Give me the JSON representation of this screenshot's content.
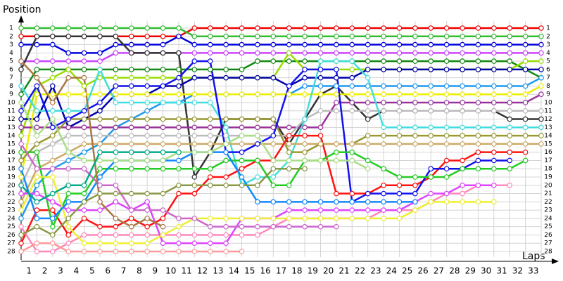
{
  "chart_data": {
    "type": "line",
    "y_label": "Position",
    "x_label": "Laps",
    "x": [
      0,
      1,
      2,
      3,
      4,
      5,
      6,
      7,
      8,
      9,
      10,
      11,
      12,
      13,
      14,
      15,
      16,
      17,
      18,
      19,
      20,
      21,
      22,
      23,
      24,
      25,
      26,
      27,
      28,
      29,
      30,
      31,
      32,
      33
    ],
    "xlim": [
      0,
      33
    ],
    "xticks": [
      1,
      2,
      3,
      4,
      5,
      6,
      7,
      8,
      9,
      10,
      11,
      12,
      13,
      14,
      15,
      16,
      17,
      18,
      19,
      20,
      21,
      22,
      23,
      24,
      25,
      26,
      27,
      28,
      29,
      30,
      31,
      32,
      33
    ],
    "ylim": [
      1,
      28
    ],
    "yticks": [
      1,
      2,
      3,
      4,
      5,
      6,
      7,
      8,
      9,
      10,
      11,
      12,
      13,
      14,
      15,
      16,
      17,
      18,
      19,
      20,
      21,
      22,
      23,
      24,
      25,
      26,
      27,
      28
    ],
    "y_inverted": true,
    "grid": true,
    "series": [
      {
        "color": "#ee0000",
        "values": [
          2,
          2,
          2,
          2,
          2,
          2,
          2,
          2,
          2,
          2,
          2,
          1,
          1,
          1,
          1,
          1,
          1,
          1,
          1,
          1,
          1,
          1,
          1,
          1,
          1,
          1,
          1,
          1,
          1,
          1,
          1,
          1,
          1,
          1
        ]
      },
      {
        "color": "#33bb33",
        "values": [
          1,
          1,
          1,
          1,
          1,
          1,
          1,
          1,
          1,
          1,
          1,
          2,
          2,
          2,
          2,
          2,
          2,
          2,
          2,
          2,
          2,
          2,
          2,
          2,
          2,
          2,
          2,
          2,
          2,
          2,
          2,
          2,
          2,
          2
        ]
      },
      {
        "color": "#0000dd",
        "values": [
          3,
          3,
          3,
          4,
          4,
          4,
          3,
          3,
          3,
          3,
          2,
          3,
          3,
          3,
          3,
          3,
          3,
          3,
          3,
          3,
          3,
          3,
          3,
          3,
          3,
          3,
          3,
          3,
          3,
          3,
          3,
          3,
          3,
          3
        ]
      },
      {
        "color": "#cc44ff",
        "values": [
          5,
          5,
          5,
          5,
          5,
          5,
          4,
          4,
          4,
          4,
          4,
          4,
          4,
          4,
          4,
          4,
          4,
          4,
          4,
          4,
          4,
          4,
          4,
          4,
          4,
          4,
          4,
          4,
          4,
          4,
          4,
          4,
          4,
          4
        ]
      },
      {
        "color": "#333333",
        "values": [
          6,
          2,
          2,
          2,
          2,
          2,
          2,
          4,
          4,
          4,
          4,
          19,
          16,
          12,
          12,
          12,
          12,
          15,
          12,
          9,
          8,
          10,
          12,
          11,
          11,
          11,
          11,
          11,
          11,
          11,
          11,
          12,
          12,
          12
        ]
      },
      {
        "color": "#118811",
        "values": [
          9,
          6,
          6,
          6,
          6,
          6,
          6,
          6,
          6,
          6,
          6,
          6,
          6,
          6,
          6,
          5,
          5,
          5,
          5,
          5,
          5,
          5,
          5,
          5,
          5,
          5,
          5,
          5,
          5,
          5,
          5,
          5,
          6,
          7
        ]
      },
      {
        "color": "#99dd00",
        "values": [
          14,
          8,
          7,
          6,
          8,
          7,
          7,
          7,
          7,
          7,
          7,
          7,
          7,
          7,
          7,
          7,
          7,
          4,
          6,
          6,
          6,
          6,
          6,
          6,
          6,
          6,
          6,
          6,
          6,
          6,
          6,
          6,
          5,
          5
        ]
      },
      {
        "color": "#0000aa",
        "values": [
          12,
          12,
          8,
          13,
          12,
          11,
          9,
          9,
          9,
          8,
          8,
          7,
          7,
          7,
          7,
          7,
          7,
          8,
          7,
          7,
          7,
          7,
          6,
          6,
          6,
          6,
          6,
          6,
          6,
          6,
          6,
          6,
          6,
          6
        ]
      },
      {
        "color": "#2299ee",
        "values": [
          24,
          20,
          18,
          17,
          16,
          15,
          13,
          12,
          11,
          10,
          10,
          9,
          9,
          9,
          9,
          9,
          9,
          9,
          8,
          8,
          8,
          8,
          8,
          8,
          8,
          8,
          8,
          8,
          8,
          8,
          8,
          8,
          8,
          7
        ]
      },
      {
        "color": "#eeee00",
        "values": [
          19,
          9,
          9,
          9,
          9,
          9,
          9,
          9,
          9,
          9,
          9,
          9,
          9,
          9,
          9,
          9,
          9,
          9,
          9,
          9,
          9,
          9,
          9,
          9,
          9,
          9,
          9,
          9,
          9,
          9,
          9,
          9,
          9,
          8
        ]
      },
      {
        "color": "#993399",
        "values": [
          13,
          13,
          13,
          13,
          13,
          13,
          13,
          13,
          13,
          13,
          13,
          13,
          13,
          13,
          13,
          13,
          13,
          13,
          13,
          13,
          10,
          10,
          10,
          10,
          10,
          10,
          10,
          10,
          10,
          10,
          10,
          10,
          10,
          9
        ]
      },
      {
        "color": "#bbbbbb",
        "values": [
          20,
          16,
          15,
          14,
          14,
          14,
          14,
          14,
          14,
          14,
          14,
          14,
          14,
          14,
          14,
          14,
          14,
          14,
          12,
          11,
          11,
          11,
          11,
          11,
          11,
          11,
          11,
          11,
          11,
          11,
          11,
          11,
          11,
          11
        ]
      },
      {
        "color": "#44dddd",
        "values": [
          8,
          11,
          11,
          11,
          11,
          6,
          10,
          10,
          10,
          10,
          10,
          10,
          10,
          13,
          20,
          19,
          19,
          17,
          12,
          5,
          5,
          5,
          7,
          13,
          13,
          13,
          13,
          13,
          13,
          13,
          13,
          13,
          13,
          13
        ]
      },
      {
        "color": "#999933",
        "values": [
          17,
          15,
          14,
          12,
          12,
          12,
          12,
          12,
          12,
          12,
          12,
          12,
          12,
          12,
          12,
          12,
          12,
          16,
          16,
          15,
          15,
          15,
          14,
          14,
          14,
          14,
          14,
          14,
          14,
          14,
          14,
          14,
          14,
          14
        ]
      },
      {
        "color": "#ccaa66",
        "values": [
          22,
          18,
          17,
          16,
          15,
          15,
          15,
          15,
          15,
          15,
          15,
          15,
          15,
          15,
          15,
          15,
          15,
          15,
          15,
          15,
          15,
          15,
          15,
          15,
          15,
          15,
          15,
          15,
          15,
          15,
          15,
          15,
          15,
          15
        ]
      },
      {
        "color": "#ff1111",
        "values": [
          27,
          23,
          23,
          26,
          24,
          25,
          25,
          24,
          25,
          24,
          21,
          21,
          19,
          19,
          18,
          17,
          17,
          14,
          14,
          14,
          21,
          21,
          21,
          20,
          20,
          20,
          19,
          17,
          17,
          16,
          16,
          16,
          16,
          null
        ]
      },
      {
        "color": "#1111ee",
        "values": [
          11,
          8,
          13,
          12,
          11,
          10,
          8,
          8,
          8,
          8,
          7,
          5,
          5,
          16,
          16,
          15,
          14,
          8,
          6,
          6,
          6,
          22,
          21,
          21,
          21,
          21,
          18,
          18,
          18,
          17,
          17,
          17,
          null,
          null
        ]
      },
      {
        "color": "#22cc22",
        "values": [
          16,
          16,
          25,
          21,
          21,
          18,
          18,
          18,
          18,
          18,
          18,
          18,
          18,
          17,
          17,
          17,
          20,
          20,
          17,
          17,
          16,
          16,
          17,
          18,
          19,
          19,
          19,
          19,
          18,
          18,
          18,
          18,
          17,
          null
        ]
      },
      {
        "color": "#ff88bb",
        "values": [
          25,
          28,
          28,
          27,
          26,
          26,
          26,
          26,
          26,
          26,
          26,
          26,
          26,
          26,
          26,
          26,
          25,
          24,
          24,
          24,
          24,
          24,
          24,
          23,
          23,
          23,
          22,
          21,
          21,
          20,
          20,
          20,
          null,
          null
        ]
      },
      {
        "color": "#dd44ff",
        "values": [
          21,
          21,
          22,
          23,
          23,
          23,
          22,
          23,
          22,
          27,
          27,
          27,
          27,
          27,
          24,
          24,
          24,
          23,
          23,
          23,
          23,
          23,
          23,
          23,
          23,
          22,
          21,
          21,
          20,
          20,
          20,
          null,
          null,
          null
        ]
      },
      {
        "color": "#eeee33",
        "values": [
          23,
          19,
          19,
          25,
          27,
          27,
          27,
          27,
          27,
          26,
          25,
          24,
          24,
          24,
          24,
          24,
          24,
          24,
          24,
          24,
          24,
          24,
          24,
          24,
          24,
          23,
          22,
          22,
          22,
          22,
          22,
          null,
          null,
          null
        ]
      },
      {
        "color": "#1188ff",
        "values": [
          18,
          24,
          24,
          22,
          22,
          19,
          17,
          17,
          17,
          17,
          17,
          16,
          16,
          16,
          19,
          22,
          22,
          22,
          22,
          22,
          22,
          22,
          22,
          22,
          22,
          22,
          null,
          null,
          null,
          null,
          null,
          null,
          null,
          null
        ]
      },
      {
        "color": "#cc66cc",
        "values": [
          15,
          18,
          18,
          18,
          18,
          20,
          20,
          23,
          23,
          23,
          24,
          24,
          25,
          25,
          25,
          25,
          25,
          25,
          25,
          25,
          25,
          null,
          null,
          null,
          null,
          null,
          null,
          null,
          null,
          null,
          null,
          null,
          null,
          null
        ]
      },
      {
        "color": "#aadd88",
        "values": [
          10,
          14,
          12,
          16,
          17,
          17,
          17,
          17,
          17,
          17,
          16,
          16,
          16,
          15,
          14,
          14,
          17,
          17,
          17,
          17,
          17,
          17,
          18,
          null,
          null,
          null,
          null,
          null,
          null,
          null,
          null,
          null,
          null,
          null
        ]
      },
      {
        "color": "#889944",
        "values": [
          26,
          25,
          26,
          24,
          22,
          21,
          21,
          21,
          21,
          21,
          20,
          20,
          20,
          20,
          20,
          20,
          18,
          18,
          18,
          null,
          null,
          null,
          null,
          null,
          null,
          null,
          null,
          null,
          null,
          null,
          null,
          null,
          null,
          null
        ]
      },
      {
        "color": "#ff9999",
        "values": [
          28,
          27,
          27,
          28,
          28,
          28,
          28,
          28,
          28,
          28,
          28,
          28,
          28,
          28,
          28,
          null,
          null,
          null,
          null,
          null,
          null,
          null,
          null,
          null,
          null,
          null,
          null,
          null,
          null,
          null,
          null,
          null,
          null,
          null
        ]
      },
      {
        "color": "#aa7744",
        "values": [
          5,
          7,
          10,
          7,
          7,
          22,
          24,
          25,
          24,
          25,
          null,
          null,
          null,
          null,
          null,
          null,
          null,
          null,
          null,
          null,
          null,
          null,
          null,
          null,
          null,
          null,
          null,
          null,
          null,
          null,
          null,
          null,
          null,
          null
        ]
      },
      {
        "color": "#00aa88",
        "values": [
          20,
          22,
          21,
          20,
          20,
          16,
          16,
          16,
          16,
          16,
          16,
          null,
          null,
          null,
          null,
          null,
          null,
          null,
          null,
          null,
          null,
          null,
          null,
          null,
          null,
          null,
          null,
          null,
          null,
          null,
          null,
          null,
          null,
          null
        ]
      }
    ]
  }
}
